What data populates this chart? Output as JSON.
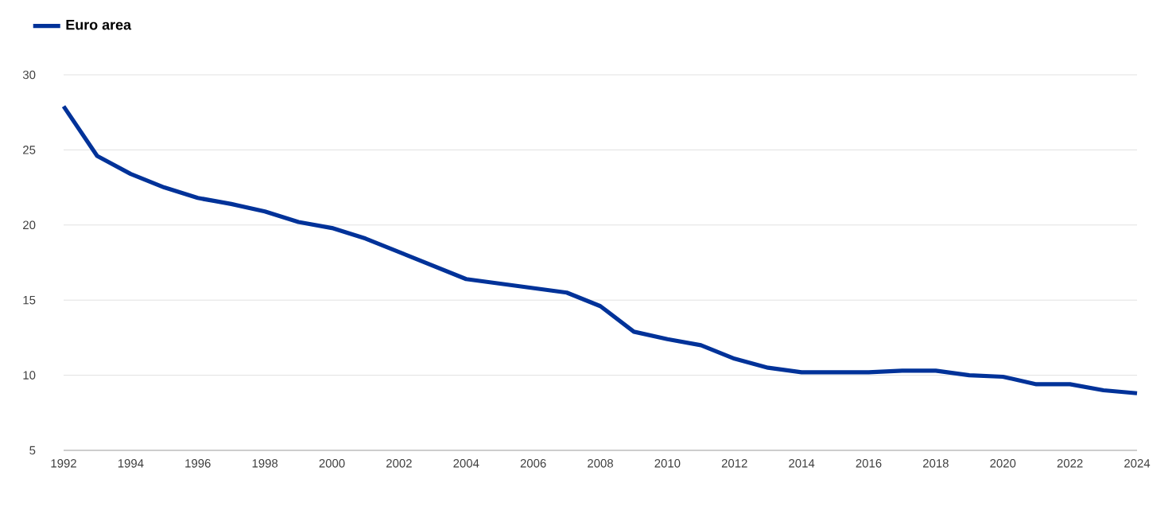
{
  "chart_data": {
    "type": "line",
    "legend": "top left",
    "grid": "y",
    "marker": "none",
    "line_style": "solid",
    "x": [
      1992,
      1993,
      1994,
      1995,
      1996,
      1997,
      1998,
      1999,
      2000,
      2001,
      2002,
      2003,
      2004,
      2005,
      2006,
      2007,
      2008,
      2009,
      2010,
      2011,
      2012,
      2013,
      2014,
      2015,
      2016,
      2017,
      2018,
      2019,
      2020,
      2021,
      2022,
      2023,
      2024
    ],
    "series": [
      {
        "name": "Euro area",
        "color": "#003299",
        "values": [
          27.9,
          24.6,
          23.4,
          22.5,
          21.8,
          21.4,
          20.9,
          20.2,
          19.8,
          19.1,
          18.2,
          17.3,
          16.4,
          16.1,
          15.8,
          15.5,
          14.6,
          12.9,
          12.4,
          12.0,
          11.1,
          10.5,
          10.2,
          10.2,
          10.2,
          10.3,
          10.3,
          10.0,
          9.9,
          9.4,
          9.4,
          9.0,
          8.8
        ]
      }
    ],
    "xlim": [
      1992,
      2024
    ],
    "xticks": [
      1992,
      1994,
      1996,
      1998,
      2000,
      2002,
      2004,
      2006,
      2008,
      2010,
      2012,
      2014,
      2016,
      2018,
      2020,
      2022,
      2024
    ],
    "ylim": [
      5,
      30
    ],
    "yticks": [
      5,
      10,
      15,
      20,
      25,
      30
    ]
  }
}
